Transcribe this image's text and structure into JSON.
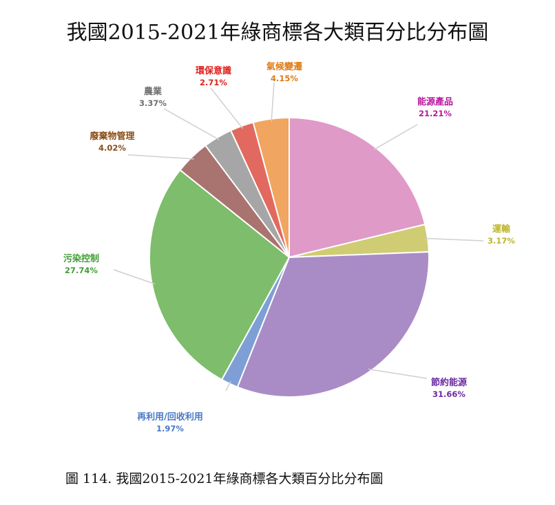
{
  "chart_data": {
    "type": "pie",
    "title": "我國2015-2021年綠商標各大類百分比分布圖",
    "slices": [
      {
        "label": "能源產品",
        "value": 21.21,
        "value_text": "21.21%",
        "color": "#e09ac7",
        "label_color": "#b5179e"
      },
      {
        "label": "運輸",
        "value": 3.17,
        "value_text": "3.17%",
        "color": "#cfcc74",
        "label_color": "#bdb72b"
      },
      {
        "label": "節約能源",
        "value": 31.66,
        "value_text": "31.66%",
        "color": "#a98cc6",
        "label_color": "#6a2b9e"
      },
      {
        "label": "再利用/回收利用",
        "value": 1.97,
        "value_text": "1.97%",
        "color": "#7e9fd6",
        "label_color": "#4a78c4"
      },
      {
        "label": "污染控制",
        "value": 27.74,
        "value_text": "27.74%",
        "color": "#7dbd6b",
        "label_color": "#3f9e36"
      },
      {
        "label": "廢棄物管理",
        "value": 4.02,
        "value_text": "4.02%",
        "color": "#a97370",
        "label_color": "#8a4d17"
      },
      {
        "label": "農業",
        "value": 3.37,
        "value_text": "3.37%",
        "color": "#a6a6a6",
        "label_color": "#6f6f6f"
      },
      {
        "label": "環保意識",
        "value": 2.71,
        "value_text": "2.71%",
        "color": "#e2695f",
        "label_color": "#e0201b"
      },
      {
        "label": "氣候變遷",
        "value": 4.15,
        "value_text": "4.15%",
        "color": "#f0a560",
        "label_color": "#e07a14"
      }
    ]
  },
  "caption": "圖 114. 我國2015-2021年綠商標各大類百分比分布圖"
}
